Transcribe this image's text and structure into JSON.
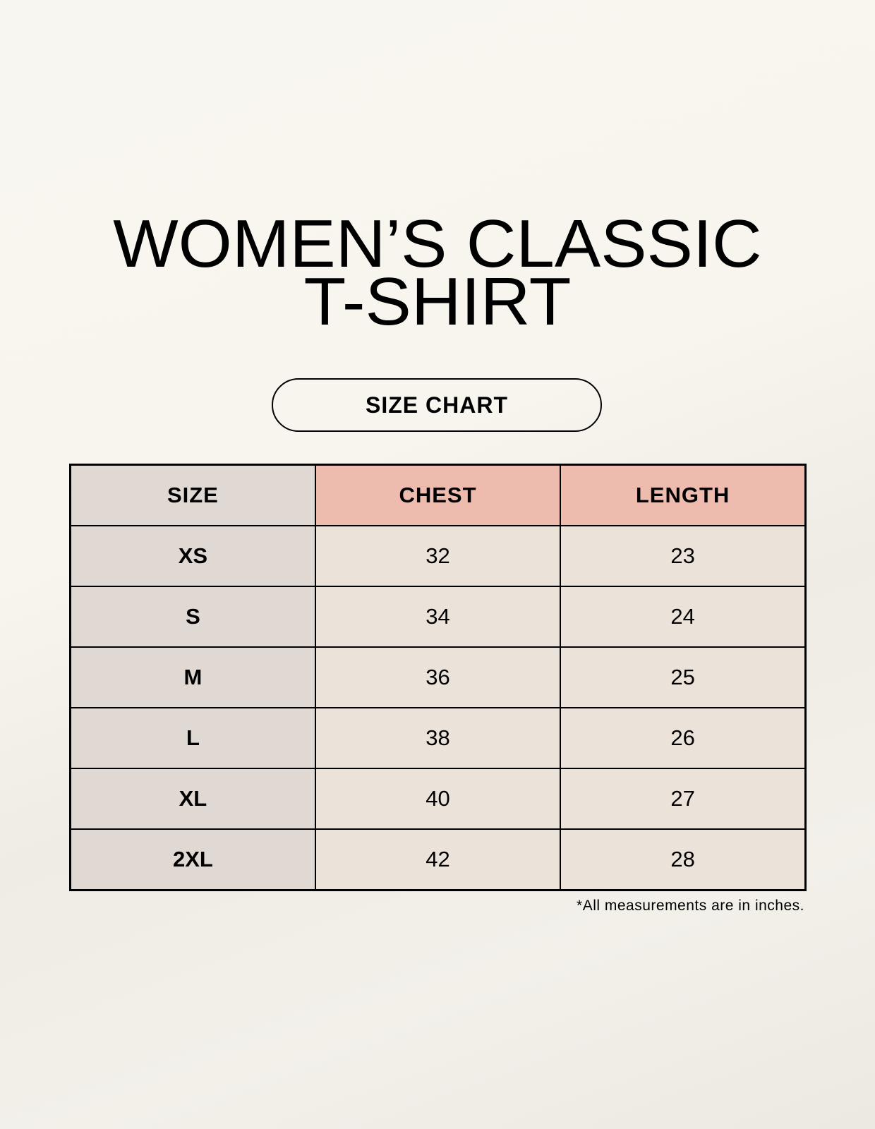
{
  "title_line1": "WOMEN’S CLASSIC",
  "title_line2": "T-SHIRT",
  "badge": "SIZE CHART",
  "table": {
    "headers": [
      "SIZE",
      "CHEST",
      "LENGTH"
    ],
    "rows": [
      [
        "XS",
        "32",
        "23"
      ],
      [
        "S",
        "34",
        "24"
      ],
      [
        "M",
        "36",
        "25"
      ],
      [
        "L",
        "38",
        "26"
      ],
      [
        "XL",
        "40",
        "27"
      ],
      [
        "2XL",
        "42",
        "28"
      ]
    ]
  },
  "footnote": "*All measurements are in inches.",
  "colors": {
    "size_column": "#e0d8d3",
    "header_accent": "#edbcae",
    "value_cells": "#ebe3d9"
  }
}
